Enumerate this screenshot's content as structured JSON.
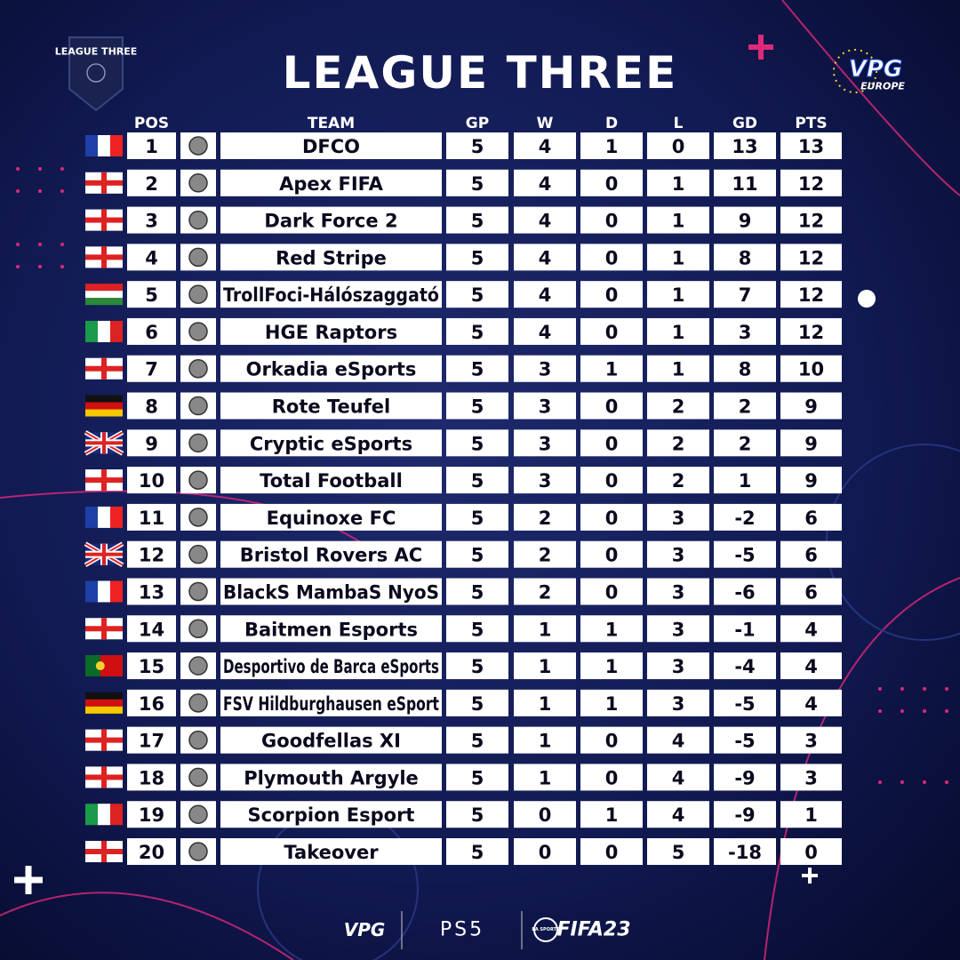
{
  "header": {
    "title": "LEAGUE THREE",
    "badge": "LEAGUE THREE",
    "brand": "VPG",
    "brand_sub": "EUROPE"
  },
  "table": {
    "columns": [
      "POS",
      "TEAM",
      "GP",
      "W",
      "D",
      "L",
      "GD",
      "PTS"
    ],
    "rows": [
      {
        "pos": 1,
        "team": "DFCO",
        "gp": 5,
        "w": 4,
        "d": 1,
        "l": 0,
        "gd": 13,
        "pts": 13,
        "zone_color": "#3ee83e"
      },
      {
        "pos": 2,
        "team": "Apex FIFA",
        "gp": 5,
        "w": 4,
        "d": 0,
        "l": 1,
        "gd": 11,
        "pts": 12,
        "zone_color": "#3ee83e"
      },
      {
        "pos": 3,
        "team": "Dark Force 2",
        "gp": 5,
        "w": 4,
        "d": 0,
        "l": 1,
        "gd": 9,
        "pts": 12,
        "zone_color": "#f5f20a"
      },
      {
        "pos": 4,
        "team": "Red Stripe",
        "gp": 5,
        "w": 4,
        "d": 0,
        "l": 1,
        "gd": 8,
        "pts": 12,
        "zone_color": "#f5f20a"
      },
      {
        "pos": 5,
        "team": "TrollFoci-Hálószaggató",
        "gp": 5,
        "w": 4,
        "d": 0,
        "l": 1,
        "gd": 7,
        "pts": 12,
        "zone_color": "#f5f20a"
      },
      {
        "pos": 6,
        "team": "HGE Raptors",
        "gp": 5,
        "w": 4,
        "d": 0,
        "l": 1,
        "gd": 3,
        "pts": 12,
        "zone_color": "#f5f20a"
      },
      {
        "pos": 7,
        "team": "Orkadia eSports",
        "gp": 5,
        "w": 3,
        "d": 1,
        "l": 1,
        "gd": 8,
        "pts": 10,
        "zone_color": "#ffffff"
      },
      {
        "pos": 8,
        "team": "Rote Teufel",
        "gp": 5,
        "w": 3,
        "d": 0,
        "l": 2,
        "gd": 2,
        "pts": 9,
        "zone_color": "#ffffff"
      },
      {
        "pos": 9,
        "team": "Cryptic eSports",
        "gp": 5,
        "w": 3,
        "d": 0,
        "l": 2,
        "gd": 2,
        "pts": 9,
        "zone_color": "#ffffff"
      },
      {
        "pos": 10,
        "team": "Total Football",
        "gp": 5,
        "w": 3,
        "d": 0,
        "l": 2,
        "gd": 1,
        "pts": 9,
        "zone_color": "#ffffff"
      },
      {
        "pos": 11,
        "team": "Equinoxe FC",
        "gp": 5,
        "w": 2,
        "d": 0,
        "l": 3,
        "gd": -2,
        "pts": 6,
        "zone_color": "#ffffff"
      },
      {
        "pos": 12,
        "team": "Bristol Rovers AC",
        "gp": 5,
        "w": 2,
        "d": 0,
        "l": 3,
        "gd": -5,
        "pts": 6,
        "zone_color": "#ffffff"
      },
      {
        "pos": 13,
        "team": "BlackS MambaS NyoS",
        "gp": 5,
        "w": 2,
        "d": 0,
        "l": 3,
        "gd": -6,
        "pts": 6,
        "zone_color": "#ffffff"
      },
      {
        "pos": 14,
        "team": "Baitmen Esports",
        "gp": 5,
        "w": 1,
        "d": 1,
        "l": 3,
        "gd": -1,
        "pts": 4,
        "zone_color": "#ffffff"
      },
      {
        "pos": 15,
        "team": "Desportivo de Barca eSports",
        "gp": 5,
        "w": 1,
        "d": 1,
        "l": 3,
        "gd": -4,
        "pts": 4,
        "zone_color": "#ffffff"
      },
      {
        "pos": 16,
        "team": "FSV Hildburghausen eSport",
        "gp": 5,
        "w": 1,
        "d": 1,
        "l": 3,
        "gd": -5,
        "pts": 4,
        "zone_color": "#ffffff"
      },
      {
        "pos": 17,
        "team": "Goodfellas XI",
        "gp": 5,
        "w": 1,
        "d": 0,
        "l": 4,
        "gd": -5,
        "pts": 3,
        "zone_color": "#ee1c1c"
      },
      {
        "pos": 18,
        "team": "Plymouth Argyle",
        "gp": 5,
        "w": 1,
        "d": 0,
        "l": 4,
        "gd": -9,
        "pts": 3,
        "zone_color": "#ee1c1c"
      },
      {
        "pos": 19,
        "team": "Scorpion Esport",
        "gp": 5,
        "w": 0,
        "d": 1,
        "l": 4,
        "gd": -9,
        "pts": 1,
        "zone_color": "#ee1c1c"
      },
      {
        "pos": 20,
        "team": "Takeover",
        "gp": 5,
        "w": 0,
        "d": 0,
        "l": 5,
        "gd": -18,
        "pts": 0,
        "zone_color": "#ee1c1c"
      }
    ]
  },
  "footer": {
    "vpg": "VPG",
    "console": "PS5",
    "game": "FIFA23",
    "publisher": "EA SPORTS"
  }
}
